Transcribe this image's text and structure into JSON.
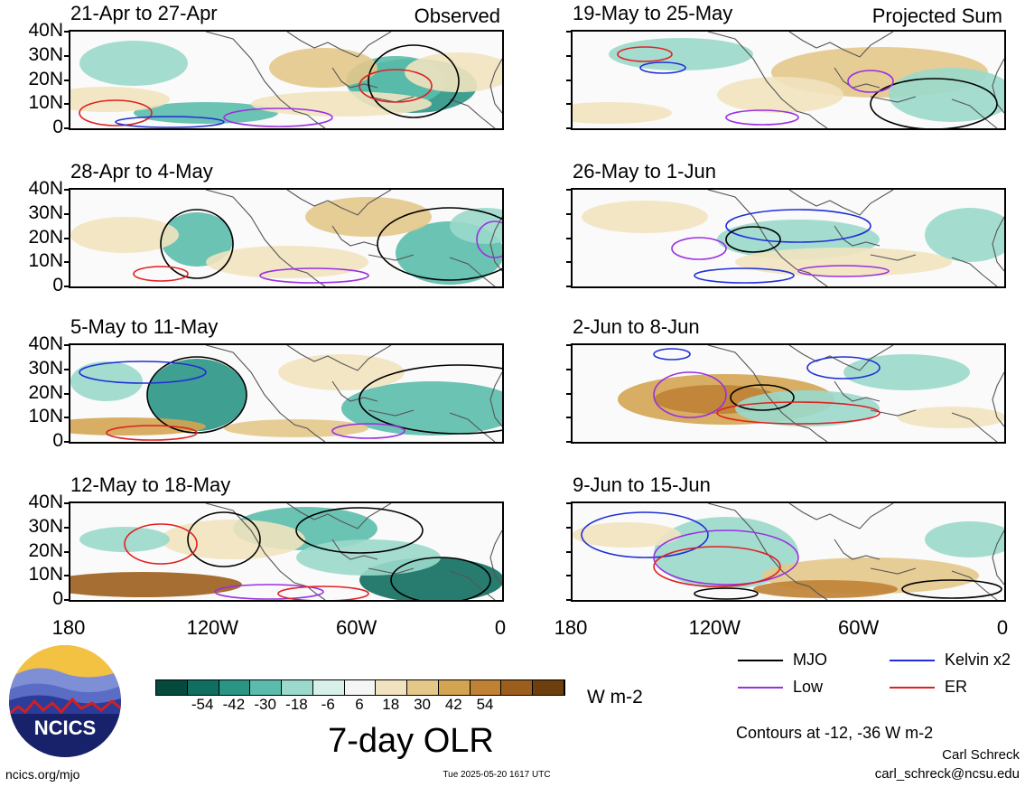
{
  "panels": [
    {
      "title": "21-Apr to 27-Apr",
      "tag": "Observed"
    },
    {
      "title": "28-Apr to 4-May",
      "tag": ""
    },
    {
      "title": "5-May to 11-May",
      "tag": ""
    },
    {
      "title": "12-May to 18-May",
      "tag": ""
    },
    {
      "title": "19-May to 25-May",
      "tag": "Projected Sum"
    },
    {
      "title": "26-May to 1-Jun",
      "tag": ""
    },
    {
      "title": "2-Jun to 8-Jun",
      "tag": ""
    },
    {
      "title": "9-Jun to 15-Jun",
      "tag": ""
    }
  ],
  "lat_labels": [
    "40N",
    "30N",
    "20N",
    "10N",
    "0"
  ],
  "lon_labels": [
    "180",
    "120W",
    "60W",
    "0"
  ],
  "colorbar": {
    "ticks": [
      "-54",
      "-42",
      "-30",
      "-18",
      "-6",
      "6",
      "18",
      "30",
      "42",
      "54"
    ],
    "colors": [
      "#064a3d",
      "#0f6e5f",
      "#2a9584",
      "#5bbcab",
      "#9ad9cb",
      "#d8f0ea",
      "#f5f5f5",
      "#f1e3bf",
      "#e3c889",
      "#d3a552",
      "#bf8234",
      "#9c5e1c",
      "#6e3f0e"
    ],
    "units": "W m-2",
    "title": "7-day OLR"
  },
  "legend": {
    "items": [
      {
        "label": "MJO",
        "color": "#000000"
      },
      {
        "label": "Kelvin x2",
        "color": "#1f2ed8"
      },
      {
        "label": "Low",
        "color": "#9a30e0"
      },
      {
        "label": "ER",
        "color": "#e02020"
      }
    ],
    "contours_note": "Contours at -12, -36 W m-2"
  },
  "footer": {
    "site": "ncics.org/mjo",
    "timestamp": "Tue 2025-05-20 1617 UTC",
    "author": "Carl Schreck",
    "email": "carl_schreck@ncsu.edu"
  },
  "logo": {
    "text": "NCICS"
  }
}
